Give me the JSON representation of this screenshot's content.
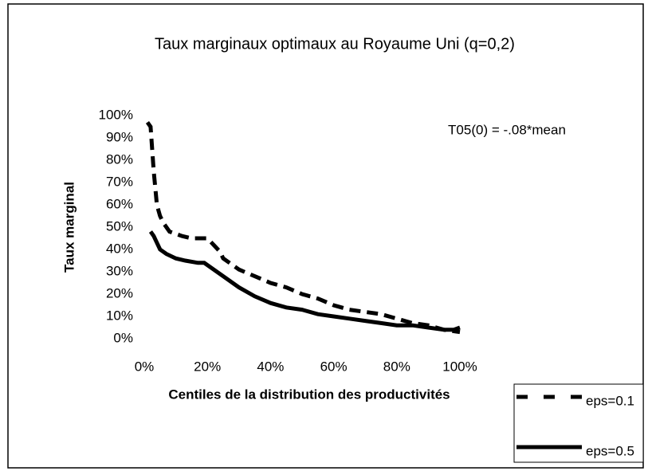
{
  "chart_data": {
    "type": "line",
    "title": "Taux marginaux optimaux au Royaume Uni (q=0,2)",
    "xlabel": "Centiles de la distribution des productivités",
    "ylabel": "Taux marginal",
    "annotation": "T05(0) = -.08*mean",
    "xlim": [
      0,
      100
    ],
    "xticks": [
      {
        "value": 0,
        "label": "0%"
      },
      {
        "value": 20,
        "label": "20%"
      },
      {
        "value": 40,
        "label": "40%"
      },
      {
        "value": 60,
        "label": "60%"
      },
      {
        "value": 80,
        "label": "80%"
      },
      {
        "value": 100,
        "label": "100%"
      }
    ],
    "ylim": [
      0,
      100
    ],
    "yticks": [
      {
        "value": 0,
        "label": "0%"
      },
      {
        "value": 10,
        "label": "10%"
      },
      {
        "value": 20,
        "label": "20%"
      },
      {
        "value": 30,
        "label": "30%"
      },
      {
        "value": 40,
        "label": "40%"
      },
      {
        "value": 50,
        "label": "50%"
      },
      {
        "value": 60,
        "label": "60%"
      },
      {
        "value": 70,
        "label": "70%"
      },
      {
        "value": 80,
        "label": "80%"
      },
      {
        "value": 90,
        "label": "90%"
      },
      {
        "value": 100,
        "label": "100%"
      }
    ],
    "grid": false,
    "legend": "bottom-right",
    "series": [
      {
        "name": "eps=0.1",
        "color": "#000000",
        "dash": true,
        "x": [
          1,
          2,
          3,
          4,
          5,
          6,
          8,
          10,
          12,
          15,
          18,
          20,
          22,
          24,
          25,
          30,
          35,
          40,
          45,
          50,
          55,
          60,
          65,
          70,
          75,
          80,
          85,
          90,
          95,
          100
        ],
        "values": [
          97,
          95,
          75,
          60,
          55,
          52,
          48,
          47,
          46,
          45,
          45,
          45,
          42,
          39,
          36,
          31,
          28,
          25,
          23,
          20,
          18,
          15,
          13,
          12,
          11,
          9,
          7,
          6,
          4,
          3
        ]
      },
      {
        "name": "eps=0.5",
        "color": "#000000",
        "dash": false,
        "x": [
          2,
          3,
          4,
          5,
          7,
          10,
          13,
          17,
          19,
          22,
          25,
          30,
          35,
          40,
          45,
          50,
          55,
          60,
          65,
          70,
          75,
          80,
          85,
          90,
          95,
          98,
          100
        ],
        "values": [
          48,
          46,
          43,
          40,
          38,
          36,
          35,
          34,
          34,
          31,
          28,
          23,
          19,
          16,
          14,
          13,
          11,
          10,
          9,
          8,
          7,
          6,
          6,
          5,
          4,
          4,
          5
        ]
      }
    ]
  }
}
